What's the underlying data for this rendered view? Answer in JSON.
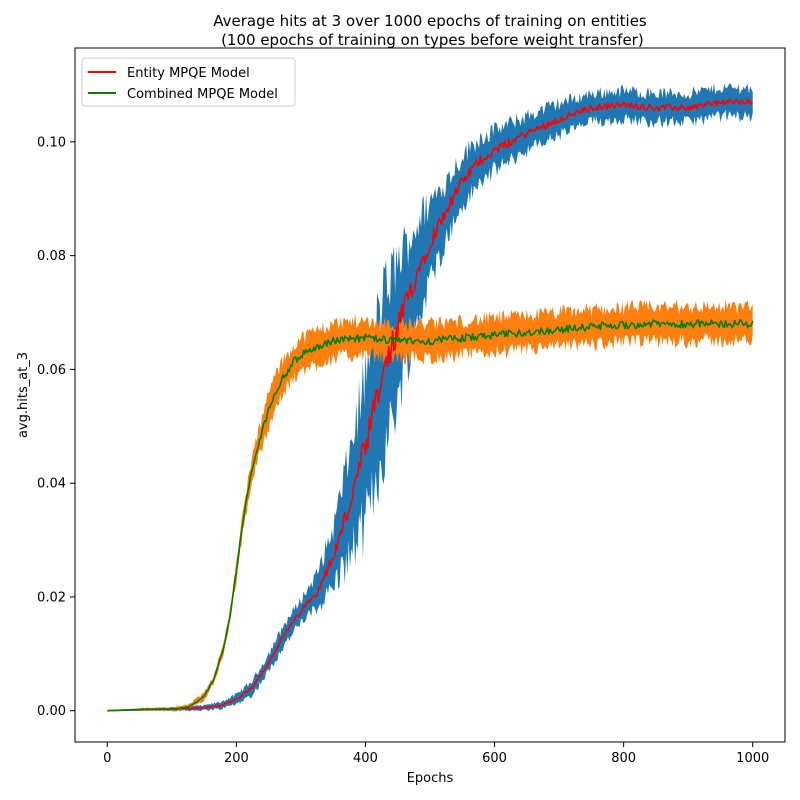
{
  "chart_data": {
    "type": "line",
    "title_line1": "Average hits at 3 over 1000 epochs of training on entities",
    "title_line2": " (100 epochs of training on types before weight transfer)",
    "xlabel": "Epochs",
    "ylabel": "avg.hits_at_3",
    "xlim": [
      -50,
      1050
    ],
    "ylim": [
      -0.0055,
      0.1165
    ],
    "xticks": [
      0,
      200,
      400,
      600,
      800,
      1000
    ],
    "xtick_labels": [
      "0",
      "200",
      "400",
      "600",
      "800",
      "1000"
    ],
    "yticks": [
      0.0,
      0.02,
      0.04,
      0.06,
      0.08,
      0.1
    ],
    "ytick_labels": [
      "0.00",
      "0.02",
      "0.04",
      "0.06",
      "0.08",
      "0.10"
    ],
    "grid": false,
    "legend_position": "top-left",
    "series": [
      {
        "name": "Entity MPQE Model",
        "color": "#ff0000",
        "band_color": "#1f77b4",
        "x": [
          0,
          50,
          100,
          150,
          175,
          200,
          225,
          250,
          275,
          300,
          325,
          350,
          375,
          400,
          425,
          450,
          475,
          500,
          525,
          550,
          575,
          600,
          650,
          700,
          750,
          800,
          850,
          900,
          950,
          1000
        ],
        "y": [
          0.0,
          0.0002,
          0.0003,
          0.0005,
          0.0009,
          0.002,
          0.004,
          0.0085,
          0.0135,
          0.0175,
          0.021,
          0.027,
          0.036,
          0.046,
          0.058,
          0.067,
          0.0755,
          0.0825,
          0.088,
          0.093,
          0.0965,
          0.0985,
          0.1015,
          0.104,
          0.106,
          0.1065,
          0.106,
          0.106,
          0.107,
          0.107
        ],
        "band_halfwidth": [
          0.0,
          0.0002,
          0.0003,
          0.0004,
          0.0006,
          0.0008,
          0.0012,
          0.0015,
          0.0018,
          0.002,
          0.003,
          0.005,
          0.009,
          0.013,
          0.014,
          0.012,
          0.009,
          0.007,
          0.005,
          0.0045,
          0.004,
          0.0035,
          0.003,
          0.0028,
          0.0025,
          0.0025,
          0.0025,
          0.0025,
          0.0025,
          0.0025
        ]
      },
      {
        "name": "Combined MPQE Model",
        "color": "#008000",
        "band_color": "#ff7f0e",
        "x": [
          0,
          50,
          100,
          125,
          150,
          165,
          180,
          190,
          200,
          210,
          220,
          230,
          240,
          250,
          260,
          275,
          290,
          300,
          325,
          350,
          375,
          400,
          450,
          500,
          550,
          600,
          650,
          700,
          750,
          800,
          850,
          900,
          950,
          1000
        ],
        "y": [
          0.0,
          0.0002,
          0.0003,
          0.0006,
          0.0025,
          0.0055,
          0.011,
          0.0165,
          0.0245,
          0.033,
          0.04,
          0.045,
          0.049,
          0.053,
          0.056,
          0.059,
          0.0615,
          0.0625,
          0.064,
          0.065,
          0.0655,
          0.0655,
          0.065,
          0.065,
          0.0655,
          0.066,
          0.0665,
          0.067,
          0.0675,
          0.0678,
          0.068,
          0.068,
          0.068,
          0.068
        ],
        "band_halfwidth": [
          0.0,
          0.0002,
          0.0003,
          0.0004,
          0.0006,
          0.0008,
          0.001,
          0.0012,
          0.0015,
          0.0018,
          0.002,
          0.0022,
          0.0025,
          0.0028,
          0.003,
          0.003,
          0.003,
          0.003,
          0.003,
          0.003,
          0.003,
          0.003,
          0.003,
          0.003,
          0.003,
          0.003,
          0.003,
          0.003,
          0.003,
          0.003,
          0.003,
          0.003,
          0.003,
          0.003
        ]
      }
    ]
  }
}
